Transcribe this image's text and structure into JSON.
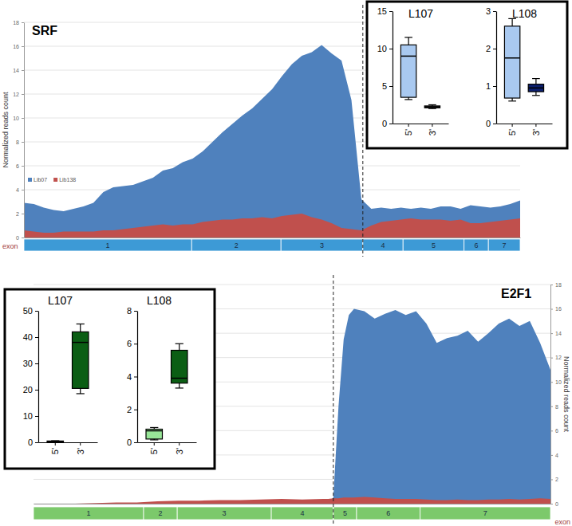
{
  "chart_data": [
    {
      "type": "area",
      "title": "SRF",
      "y_label": "Normalized reads count",
      "x": [
        0,
        2,
        4,
        6,
        8,
        10,
        12,
        14,
        16,
        18,
        20,
        22,
        24,
        26,
        28,
        30,
        32,
        34,
        36,
        38,
        40,
        42,
        44,
        46,
        48,
        50,
        52,
        54,
        56,
        58,
        60,
        62,
        64,
        66,
        68,
        70,
        72,
        74,
        76,
        78,
        80,
        82,
        84,
        86,
        88,
        90,
        92,
        94,
        96,
        98,
        100
      ],
      "xlim": [
        0,
        100
      ],
      "ylim": [
        0,
        18
      ],
      "yticks": [
        0,
        2,
        4,
        6,
        8,
        10,
        12,
        14,
        16,
        18
      ],
      "grid": true,
      "legend": "left",
      "tick_labels": "y",
      "series": [
        {
          "name": "Lib07",
          "color": "#4f81bd",
          "values": [
            2.9,
            2.8,
            2.5,
            2.3,
            2.2,
            2.4,
            2.6,
            2.9,
            3.8,
            4.2,
            4.3,
            4.4,
            4.7,
            5.0,
            5.6,
            5.8,
            6.3,
            6.6,
            7.2,
            8.0,
            8.8,
            9.5,
            10.2,
            10.8,
            11.6,
            12.4,
            13.5,
            14.5,
            15.2,
            15.5,
            16.1,
            15.4,
            14.8,
            11.5,
            3.2,
            2.4,
            2.5,
            2.4,
            2.5,
            2.4,
            2.5,
            2.4,
            2.6,
            2.6,
            2.4,
            2.7,
            2.6,
            2.5,
            2.6,
            2.8,
            3.1
          ]
        },
        {
          "name": "Lib138",
          "color": "#c0504d",
          "values": [
            0.6,
            0.5,
            0.4,
            0.4,
            0.5,
            0.5,
            0.5,
            0.5,
            0.6,
            0.6,
            0.7,
            0.8,
            0.9,
            1.0,
            1.1,
            1.0,
            1.1,
            1.1,
            1.3,
            1.4,
            1.5,
            1.5,
            1.6,
            1.6,
            1.7,
            1.6,
            1.8,
            1.9,
            2.0,
            1.7,
            1.5,
            1.2,
            0.8,
            0.7,
            0.6,
            1.0,
            1.3,
            1.4,
            1.5,
            1.6,
            1.5,
            1.5,
            1.5,
            1.4,
            1.5,
            1.2,
            1.2,
            1.3,
            1.4,
            1.5,
            1.6
          ]
        }
      ],
      "exon_label": "exon",
      "exons": {
        "labels": [
          "1",
          "2",
          "3",
          "4",
          "5",
          "6",
          "7"
        ],
        "start": [
          0,
          33.8,
          51.8,
          68.3,
          76.4,
          88.7,
          93.6
        ],
        "end": [
          33.8,
          51.8,
          68.3,
          76.4,
          88.7,
          93.6,
          100
        ],
        "color": "#3d9ad6"
      },
      "boundary_x": 68.3
    },
    {
      "type": "box",
      "title": "L107",
      "categories": [
        "5'",
        "3'"
      ],
      "min": [
        3.2,
        2.0
      ],
      "q1": [
        3.5,
        2.1
      ],
      "median": [
        9.0,
        2.2
      ],
      "q3": [
        10.5,
        2.35
      ],
      "max": [
        11.5,
        2.5
      ],
      "colors": [
        "#a9c9f0",
        "#222222"
      ],
      "ylim": [
        0,
        15
      ],
      "yticks": [
        0,
        5,
        10,
        15
      ]
    },
    {
      "type": "box",
      "title": "L108",
      "categories": [
        "5'",
        "3'"
      ],
      "min": [
        0.6,
        0.75
      ],
      "q1": [
        0.68,
        0.85
      ],
      "median": [
        1.75,
        0.95
      ],
      "q3": [
        2.6,
        1.05
      ],
      "max": [
        2.8,
        1.2
      ],
      "colors": [
        "#a9c9f0",
        "#0c1f6e"
      ],
      "ylim": [
        0,
        3
      ],
      "yticks": [
        0,
        1,
        2,
        3
      ]
    },
    {
      "type": "area",
      "title": "E2F1",
      "y_label": "Normalized reads count",
      "x": [
        0,
        4,
        8,
        12,
        16,
        20,
        24,
        28,
        32,
        36,
        40,
        44,
        48,
        52,
        56,
        57,
        58,
        59,
        60,
        61,
        62,
        64,
        66,
        68,
        70,
        72,
        74,
        76,
        78,
        80,
        82,
        84,
        86,
        88,
        90,
        92,
        94,
        96,
        98,
        100
      ],
      "xlim": [
        0,
        100
      ],
      "ylim": [
        0,
        18
      ],
      "yticks": [
        0,
        2,
        4,
        6,
        8,
        10,
        12,
        14,
        16,
        18
      ],
      "grid": true,
      "tick_labels": "y",
      "series": [
        {
          "color": "#4f81bd",
          "values": [
            0,
            0,
            0,
            0,
            0,
            0,
            0,
            0,
            0,
            0,
            0,
            0,
            0,
            0,
            0,
            0.1,
            0.5,
            8,
            13.5,
            15.5,
            16,
            15.8,
            15.2,
            15.6,
            15.9,
            15.5,
            15.8,
            14.8,
            13.2,
            13.6,
            13.8,
            14.2,
            13.3,
            14.0,
            14.8,
            15.2,
            14.6,
            15.0,
            13.2,
            11.0
          ]
        },
        {
          "color": "#c0504d",
          "values": [
            0,
            0,
            0,
            0.05,
            0.1,
            0.1,
            0.2,
            0.25,
            0.25,
            0.3,
            0.3,
            0.35,
            0.4,
            0.35,
            0.4,
            0.4,
            0.45,
            0.45,
            0.5,
            0.5,
            0.5,
            0.55,
            0.5,
            0.45,
            0.4,
            0.4,
            0.4,
            0.35,
            0.3,
            0.3,
            0.35,
            0.3,
            0.3,
            0.35,
            0.35,
            0.4,
            0.35,
            0.4,
            0.45,
            0.4
          ]
        }
      ],
      "exon_label": "exon",
      "exons": {
        "labels": [
          "1",
          "2",
          "3",
          "4",
          "5",
          "6",
          "7"
        ],
        "start": [
          0,
          21.3,
          27.8,
          46,
          58,
          62.5,
          74.8
        ],
        "end": [
          21.3,
          27.8,
          46,
          58,
          62.5,
          74.8,
          100
        ],
        "color": "#7cc96b"
      },
      "boundary_x": 58
    },
    {
      "type": "box",
      "title": "L107",
      "categories": [
        "5'",
        "3'"
      ],
      "min": [
        0,
        18.5
      ],
      "q1": [
        0.1,
        20.5
      ],
      "median": [
        0.3,
        38
      ],
      "q3": [
        0.5,
        42
      ],
      "max": [
        0.6,
        45
      ],
      "colors": [
        "#111111",
        "#0b5e14"
      ],
      "ylim": [
        0,
        50
      ],
      "yticks": [
        0,
        10,
        20,
        30,
        40,
        50
      ]
    },
    {
      "type": "box",
      "title": "L108",
      "categories": [
        "5'",
        "3'"
      ],
      "min": [
        0.15,
        3.3
      ],
      "q1": [
        0.2,
        3.6
      ],
      "median": [
        0.7,
        3.9
      ],
      "q3": [
        0.8,
        5.6
      ],
      "max": [
        0.9,
        6.0
      ],
      "colors": [
        "#98e698",
        "#0b5e14"
      ],
      "ylim": [
        0,
        8
      ],
      "yticks": [
        0,
        2,
        4,
        6,
        8
      ]
    }
  ]
}
